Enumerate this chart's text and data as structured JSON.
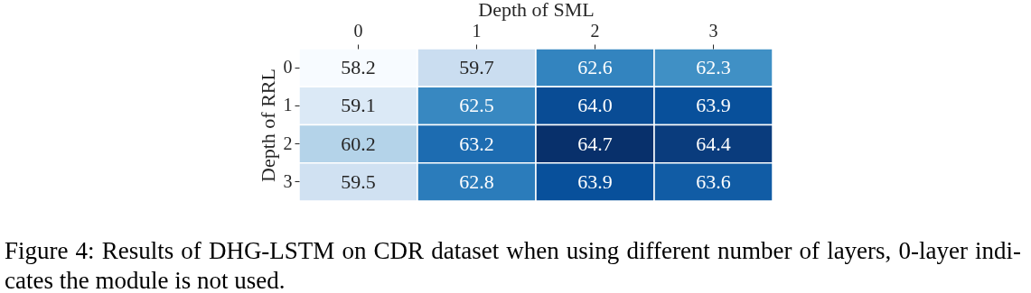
{
  "chart_data": {
    "type": "heatmap",
    "xlabel": "Depth of SML",
    "ylabel": "Depth of RRL",
    "categories": [
      "0",
      "1",
      "2",
      "3"
    ],
    "y_categories": [
      "0",
      "1",
      "2",
      "3"
    ],
    "cells": [
      [
        58.2,
        59.7,
        62.6,
        62.3
      ],
      [
        59.1,
        62.5,
        64.0,
        63.9
      ],
      [
        60.2,
        63.2,
        64.7,
        64.4
      ],
      [
        59.5,
        62.8,
        63.9,
        63.6
      ]
    ],
    "cell_labels": [
      [
        "58.2",
        "59.7",
        "62.6",
        "62.3"
      ],
      [
        "59.1",
        "62.5",
        "64.0",
        "63.9"
      ],
      [
        "60.2",
        "63.2",
        "64.7",
        "64.4"
      ],
      [
        "59.5",
        "62.8",
        "63.9",
        "63.6"
      ]
    ],
    "annotations": [
      "Figure 4: Results of DHG-LSTM on CDR dataset when using different number of layers, 0-layer indi-",
      "cates the module is not used."
    ]
  }
}
